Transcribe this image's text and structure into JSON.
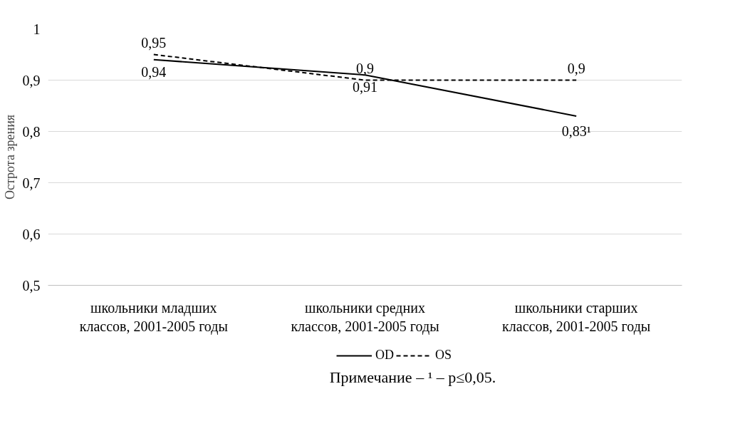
{
  "chart_data": {
    "type": "line",
    "ylabel": "Острота зрения",
    "categories": [
      "школьники младших классов, 2001-2005 годы",
      "школьники средних классов, 2001-2005 годы",
      "школьники старших классов, 2001-2005 годы"
    ],
    "series": [
      {
        "name": "OD",
        "color": "#000000",
        "line_style": "solid",
        "values": [
          0.94,
          0.91,
          0.83
        ],
        "value_labels": [
          "0,94",
          "0,91",
          "0,83¹"
        ]
      },
      {
        "name": "OS",
        "color": "#000000",
        "line_style": "dashed",
        "values": [
          0.95,
          0.9,
          0.9
        ],
        "value_labels": [
          "0,95",
          "0,9",
          "0,9"
        ]
      }
    ],
    "ylim": [
      0.5,
      1
    ],
    "yticks": [
      {
        "value": 0.5,
        "label": "0,5"
      },
      {
        "value": 0.6,
        "label": "0,6"
      },
      {
        "value": 0.7,
        "label": "0,7"
      },
      {
        "value": 0.8,
        "label": "0,8"
      },
      {
        "value": 0.9,
        "label": "0,9"
      },
      {
        "value": 1,
        "label": "1"
      }
    ],
    "grid": "y",
    "legend": "bottom",
    "marker": "none",
    "annotations": [
      "Примечание – ¹ – p≤0,05."
    ]
  }
}
